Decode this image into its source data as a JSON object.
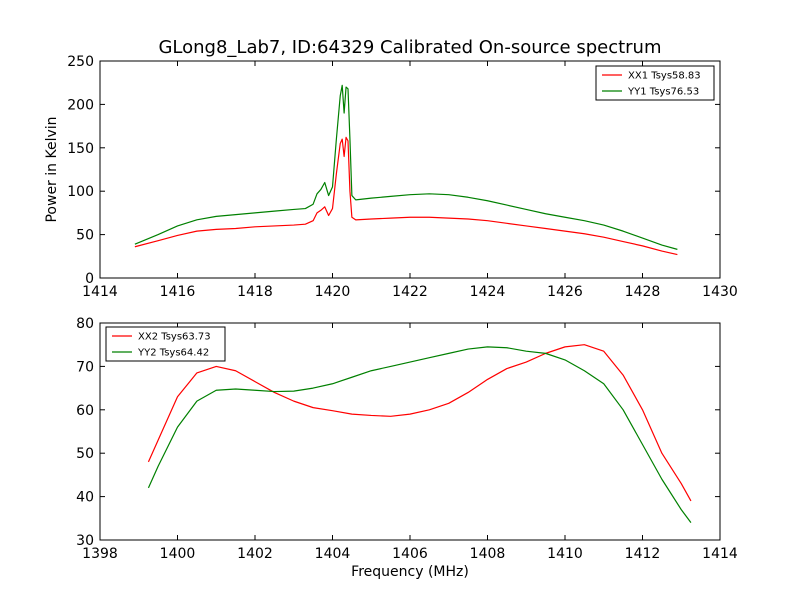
{
  "figure": {
    "title": "GLong8_Lab7, ID:64329 Calibrated On-source spectrum"
  },
  "chart_data": [
    {
      "type": "line",
      "xlabel": "",
      "ylabel": "Power in Kelvin",
      "xlim": [
        1414,
        1430
      ],
      "ylim": [
        0,
        250
      ],
      "xticks": [
        1414,
        1416,
        1418,
        1420,
        1422,
        1424,
        1426,
        1428,
        1430
      ],
      "yticks": [
        0,
        50,
        100,
        150,
        200,
        250
      ],
      "grid": false,
      "legend": "top-right",
      "series": [
        {
          "name": "XX1 Tsys58.83",
          "color": "#ff0000",
          "x": [
            1414.9,
            1415.5,
            1416,
            1416.5,
            1417,
            1417.5,
            1418,
            1418.5,
            1419,
            1419.3,
            1419.5,
            1419.6,
            1419.7,
            1419.8,
            1419.9,
            1420.0,
            1420.1,
            1420.2,
            1420.25,
            1420.3,
            1420.35,
            1420.4,
            1420.45,
            1420.5,
            1420.6,
            1421,
            1421.5,
            1422,
            1422.5,
            1423,
            1423.5,
            1424,
            1424.5,
            1425,
            1425.5,
            1426,
            1426.5,
            1427,
            1427.5,
            1428,
            1428.5,
            1428.9
          ],
          "y": [
            36,
            43,
            49,
            54,
            56,
            57,
            59,
            60,
            61,
            62,
            66,
            75,
            78,
            82,
            72,
            80,
            120,
            155,
            160,
            140,
            162,
            158,
            100,
            70,
            67,
            68,
            69,
            70,
            70,
            69,
            68,
            66,
            63,
            60,
            57,
            54,
            51,
            47,
            42,
            37,
            31,
            27
          ]
        },
        {
          "name": "YY1 Tsys76.53",
          "color": "#008000",
          "x": [
            1414.9,
            1415.5,
            1416,
            1416.5,
            1417,
            1417.5,
            1418,
            1418.5,
            1419,
            1419.3,
            1419.5,
            1419.6,
            1419.7,
            1419.8,
            1419.9,
            1420.0,
            1420.1,
            1420.2,
            1420.25,
            1420.3,
            1420.35,
            1420.4,
            1420.45,
            1420.5,
            1420.6,
            1421,
            1421.5,
            1422,
            1422.5,
            1423,
            1423.5,
            1424,
            1424.5,
            1425,
            1425.5,
            1426,
            1426.5,
            1427,
            1427.5,
            1428,
            1428.5,
            1428.9
          ],
          "y": [
            39,
            50,
            60,
            67,
            71,
            73,
            75,
            77,
            79,
            80,
            85,
            97,
            102,
            110,
            95,
            105,
            160,
            210,
            222,
            190,
            220,
            218,
            160,
            95,
            90,
            92,
            94,
            96,
            97,
            96,
            93,
            89,
            84,
            79,
            74,
            70,
            66,
            61,
            54,
            46,
            38,
            33
          ]
        }
      ]
    },
    {
      "type": "line",
      "xlabel": "Frequency (MHz)",
      "ylabel": "",
      "xlim": [
        1398,
        1414
      ],
      "ylim": [
        30,
        80
      ],
      "xticks": [
        1398,
        1400,
        1402,
        1404,
        1406,
        1408,
        1410,
        1412,
        1414
      ],
      "yticks": [
        30,
        40,
        50,
        60,
        70,
        80
      ],
      "grid": false,
      "legend": "top-left",
      "series": [
        {
          "name": "XX2 Tsys63.73",
          "color": "#ff0000",
          "x": [
            1399.25,
            1399.5,
            1400,
            1400.5,
            1401,
            1401.5,
            1402,
            1402.5,
            1403,
            1403.5,
            1404,
            1404.5,
            1405,
            1405.5,
            1406,
            1406.5,
            1407,
            1407.5,
            1408,
            1408.5,
            1409,
            1409.5,
            1410,
            1410.5,
            1411,
            1411.5,
            1412,
            1412.5,
            1413,
            1413.25
          ],
          "y": [
            48,
            53,
            63,
            68.5,
            70,
            69,
            66.5,
            64,
            62,
            60.5,
            59.8,
            59,
            58.7,
            58.5,
            59,
            60,
            61.5,
            64,
            67,
            69.5,
            71,
            73,
            74.5,
            75,
            73.5,
            68,
            60,
            50,
            43,
            39
          ]
        },
        {
          "name": "YY2 Tsys64.42",
          "color": "#008000",
          "x": [
            1399.25,
            1399.5,
            1400,
            1400.5,
            1401,
            1401.5,
            1402,
            1402.5,
            1403,
            1403.5,
            1404,
            1404.5,
            1405,
            1405.5,
            1406,
            1406.5,
            1407,
            1407.5,
            1408,
            1408.5,
            1409,
            1409.5,
            1410,
            1410.5,
            1411,
            1411.5,
            1412,
            1412.5,
            1413,
            1413.25
          ],
          "y": [
            42,
            47,
            56,
            62,
            64.5,
            64.8,
            64.5,
            64.2,
            64.3,
            65,
            66,
            67.5,
            69,
            70,
            71,
            72,
            73,
            74,
            74.5,
            74.3,
            73.5,
            73,
            71.5,
            69,
            66,
            60,
            52,
            44,
            37,
            34
          ]
        }
      ]
    }
  ]
}
